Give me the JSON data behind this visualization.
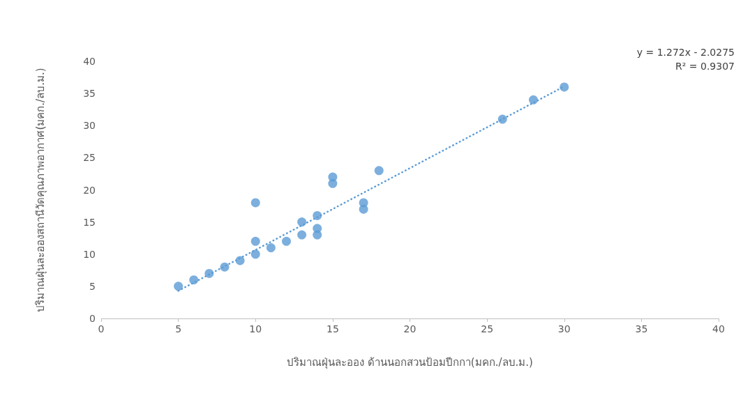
{
  "chart_data": {
    "type": "scatter",
    "xlabel": "ปริมาณฝุ่นละออง ด้านนอกสวนป้อมปีกกา(มคก./ลบ.ม.)",
    "ylabel": "ปริมาณฝุ่นละอองสถานีวัดคุณภาพอากาศ(มคก./ลบ.ม.)",
    "annotations": [
      "y = 1.272x - 2.0275",
      "R² = 0.9307"
    ],
    "series": [
      {
        "color": "#5b9bd5",
        "marker": "circle",
        "x": [
          5,
          6,
          7,
          8,
          9,
          10,
          10,
          10,
          11,
          12,
          13,
          13,
          14,
          14,
          14,
          15,
          15,
          17,
          17,
          18,
          26,
          28,
          30
        ],
        "values": [
          5,
          6,
          7,
          8,
          9,
          10,
          12,
          18,
          11,
          12,
          13,
          15,
          13,
          14,
          16,
          21,
          22,
          17,
          18,
          23,
          31,
          34,
          36
        ]
      },
      {
        "type": "line",
        "color": "#5b9bd5",
        "line_style": "dotted",
        "x": [
          5,
          30
        ],
        "values": [
          4.3,
          36.1
        ]
      }
    ],
    "xlim": [
      0,
      40
    ],
    "xticks": [
      0,
      5,
      10,
      15,
      20,
      25,
      30,
      35,
      40
    ],
    "ylim": [
      0,
      40
    ],
    "yticks": [
      0,
      5,
      10,
      15,
      20,
      25,
      30,
      35,
      40
    ],
    "grid": false
  }
}
